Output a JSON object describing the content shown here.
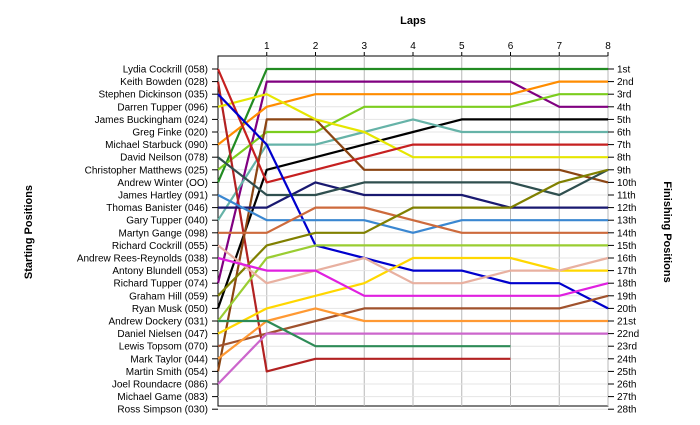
{
  "chart_data": {
    "type": "line",
    "title": "Laps",
    "xlabel": "Laps",
    "ylabel_left": "Starting Positions",
    "ylabel_right": "Finishing Positions",
    "x": [
      0,
      1,
      2,
      3,
      4,
      5,
      6,
      7,
      8
    ],
    "x_tick_labels": [
      "1",
      "2",
      "3",
      "4",
      "5",
      "6",
      "7",
      "8"
    ],
    "ylim": [
      1,
      28
    ],
    "y_inverted": true,
    "grid": true,
    "starting_grid": [
      "Lydia Cockrill (058)",
      "Keith Bowden (028)",
      "Stephen Dickinson (035)",
      "Darren Tupper (096)",
      "James Buckingham (024)",
      "Greg Finke (020)",
      "Michael Starbuck (090)",
      "David Neilson (078)",
      "Christopher Matthews (025)",
      "Andrew Winter (OO)",
      "James Hartley (091)",
      "Thomas Banister (046)",
      "Gary Tupper (040)",
      "Martyn Gange (098)",
      "Richard Cockrill (055)",
      "Andrew Rees-Reynolds (038)",
      "Antony Blundell (053)",
      "Richard Tupper (074)",
      "Graham Hill (059)",
      "Ryan Musk (050)",
      "Andrew Dockery (031)",
      "Daniel Nielsen (047)",
      "Lewis Topsom (070)",
      "Mark Taylor (044)",
      "Martin Smith (054)",
      "Joel Roundacre (086)",
      "Michael Game (083)",
      "Ross Simpson (030)"
    ],
    "finishing_labels": [
      "1st",
      "2nd",
      "3rd",
      "4th",
      "5th",
      "6th",
      "7th",
      "8th",
      "9th",
      "10th",
      "11th",
      "12th",
      "13th",
      "14th",
      "15th",
      "16th",
      "17th",
      "18th",
      "19th",
      "20th",
      "21st",
      "22nd",
      "23rd",
      "24th",
      "25th",
      "26th",
      "27th",
      "28th"
    ],
    "series": [
      {
        "color": "#228b22",
        "values": [
          10,
          1,
          1,
          1,
          1,
          1,
          1,
          1,
          1
        ]
      },
      {
        "color": "#800080",
        "values": [
          18,
          2,
          2,
          2,
          2,
          2,
          2,
          4,
          4
        ]
      },
      {
        "color": "#ff8c00",
        "values": [
          7,
          4,
          3,
          3,
          3,
          3,
          3,
          2,
          2
        ]
      },
      {
        "color": "#7ccd1e",
        "values": [
          9,
          6,
          6,
          4,
          4,
          4,
          4,
          3,
          3
        ]
      },
      {
        "color": "#000000",
        "values": [
          20,
          9,
          8,
          7,
          6,
          5,
          5,
          5,
          5
        ]
      },
      {
        "color": "#66b3a8",
        "values": [
          13,
          7,
          7,
          6,
          5,
          6,
          6,
          6,
          6
        ]
      },
      {
        "color": "#b22222",
        "values": [
          2,
          25,
          24,
          24,
          24,
          24,
          24,
          null,
          null
        ]
      },
      {
        "color": "#8b4513",
        "values": [
          25,
          5,
          5,
          9,
          9,
          9,
          9,
          9,
          10
        ]
      },
      {
        "color": "#e6e600",
        "values": [
          4,
          3,
          5,
          6,
          8,
          8,
          8,
          8,
          8
        ]
      },
      {
        "color": "#c62020",
        "values": [
          1,
          10,
          9,
          8,
          7,
          7,
          7,
          7,
          7
        ]
      },
      {
        "color": "#191970",
        "values": [
          12,
          12,
          10,
          11,
          11,
          11,
          12,
          12,
          12
        ]
      },
      {
        "color": "#2f4f4f",
        "values": [
          8,
          11,
          11,
          10,
          10,
          10,
          10,
          11,
          9
        ]
      },
      {
        "color": "#0000cd",
        "values": [
          3,
          7,
          15,
          16,
          17,
          17,
          18,
          18,
          20
        ]
      },
      {
        "color": "#3a87d1",
        "values": [
          11,
          13,
          13,
          13,
          14,
          13,
          13,
          13,
          13
        ]
      },
      {
        "color": "#cd6a3c",
        "values": [
          14,
          14,
          12,
          12,
          13,
          14,
          14,
          14,
          14
        ]
      },
      {
        "color": "#808000",
        "values": [
          19,
          15,
          14,
          14,
          12,
          12,
          12,
          10,
          9
        ]
      },
      {
        "color": "#9acd32",
        "values": [
          21,
          16,
          15,
          15,
          15,
          15,
          15,
          15,
          15
        ]
      },
      {
        "color": "#ffd700",
        "values": [
          22,
          20,
          19,
          18,
          16,
          16,
          16,
          17,
          17
        ]
      },
      {
        "color": "#e8b0a0",
        "values": [
          15,
          18,
          17,
          16,
          18,
          18,
          17,
          17,
          16
        ]
      },
      {
        "color": "#e020e0",
        "values": [
          16,
          17,
          17,
          19,
          19,
          19,
          19,
          19,
          18
        ]
      },
      {
        "color": "#a0522d",
        "values": [
          23,
          22,
          21,
          20,
          20,
          20,
          20,
          20,
          19
        ]
      },
      {
        "color": "#ff9933",
        "values": [
          24,
          21,
          20,
          21,
          21,
          21,
          21,
          21,
          21
        ]
      },
      {
        "color": "#cc66cc",
        "values": [
          26,
          22,
          22,
          22,
          22,
          22,
          22,
          22,
          22
        ]
      },
      {
        "color": "#2e8b57",
        "values": [
          21,
          21,
          23,
          23,
          23,
          23,
          23,
          null,
          null
        ]
      }
    ]
  }
}
